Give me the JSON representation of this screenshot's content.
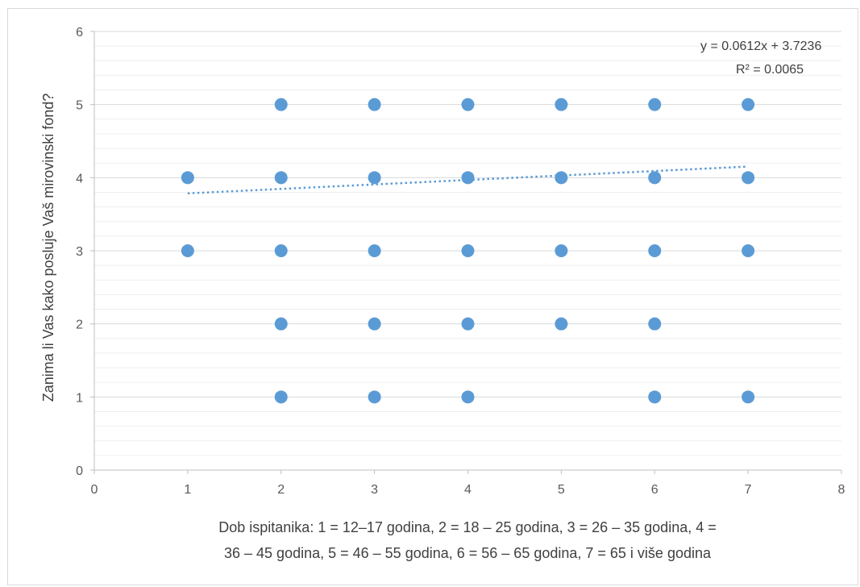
{
  "chart_data": {
    "type": "scatter",
    "title": "",
    "xlabel_lines": [
      "Dob ispitanika: 1 = 12–17 godina, 2 = 18 – 25 godina, 3 = 26 – 35 godina, 4 =",
      "36 – 45 godina, 5 = 46 – 55 godina, 6 = 56 – 65 godina, 7 = 65 i više godina"
    ],
    "ylabel": "Zanima li Vas kako posluje Vaš mirovinski fond?",
    "xlim": [
      0,
      8
    ],
    "ylim": [
      0,
      6
    ],
    "x_ticks": [
      "0",
      "1",
      "2",
      "3",
      "4",
      "5",
      "6",
      "7",
      "8"
    ],
    "y_ticks": [
      "0",
      "1",
      "2",
      "3",
      "4",
      "5",
      "6"
    ],
    "grid": "major and minor horizontal",
    "series": [
      {
        "color": "#5b9bd5",
        "points": [
          [
            1,
            4
          ],
          [
            1,
            3
          ],
          [
            2,
            5
          ],
          [
            2,
            4
          ],
          [
            2,
            3
          ],
          [
            2,
            2
          ],
          [
            2,
            1
          ],
          [
            3,
            5
          ],
          [
            3,
            4
          ],
          [
            3,
            3
          ],
          [
            3,
            2
          ],
          [
            3,
            1
          ],
          [
            4,
            5
          ],
          [
            4,
            4
          ],
          [
            4,
            3
          ],
          [
            4,
            2
          ],
          [
            4,
            1
          ],
          [
            5,
            5
          ],
          [
            5,
            4
          ],
          [
            5,
            3
          ],
          [
            5,
            2
          ],
          [
            6,
            5
          ],
          [
            6,
            4
          ],
          [
            6,
            3
          ],
          [
            6,
            2
          ],
          [
            6,
            1
          ],
          [
            7,
            5
          ],
          [
            7,
            4
          ],
          [
            7,
            3
          ],
          [
            7,
            1
          ]
        ]
      }
    ],
    "trendline": {
      "type": "linear",
      "style": "dotted",
      "slope": 0.0612,
      "intercept": 3.7236,
      "x_range": [
        1,
        7
      ],
      "equation": "y = 0.0612x + 3.7236",
      "r_squared": "R² = 0.0065"
    }
  }
}
